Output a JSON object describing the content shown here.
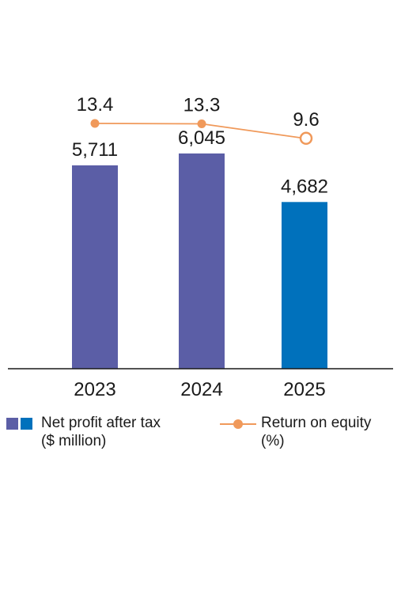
{
  "chart_data": {
    "type": "bar",
    "categories": [
      "2023",
      "2024",
      "2025"
    ],
    "series": [
      {
        "name": "Net profit after tax ($ million)",
        "type": "bar",
        "values": [
          5711,
          6045,
          4682
        ],
        "value_labels": [
          "5,711",
          "6,045",
          "4,682"
        ],
        "colors": [
          "#5b5ea6",
          "#5b5ea6",
          "#0071bc"
        ]
      },
      {
        "name": "Return on equity (%)",
        "type": "line",
        "values": [
          13.4,
          13.3,
          9.6
        ],
        "value_labels": [
          "13.4",
          "13.3",
          "9.6"
        ],
        "color": "#f0995a",
        "last_point_hollow": true
      }
    ],
    "ylim_bars": [
      0,
      6800
    ],
    "ylim_line": [
      0,
      16
    ],
    "grid": false,
    "legend_position": "bottom"
  },
  "legend": {
    "bars_label": "Net profit after tax\n($ million)",
    "line_label": "Return on equity\n(%)",
    "bars_swatch_colors": [
      "#5b5ea6",
      "#0071bc"
    ],
    "line_color": "#f0995a"
  }
}
